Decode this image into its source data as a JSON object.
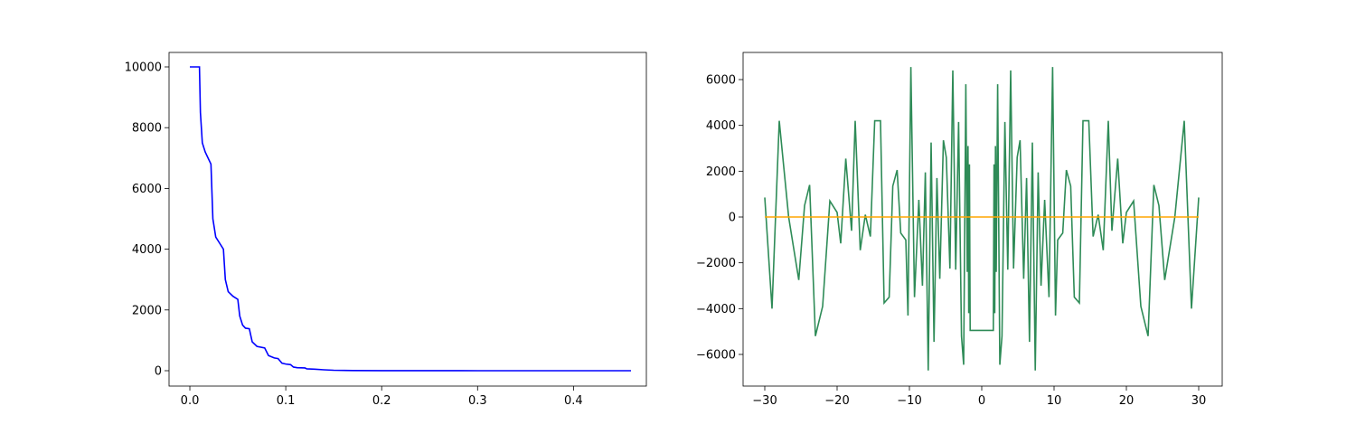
{
  "chart_data": [
    {
      "type": "line",
      "x": [
        0,
        0.01,
        0.011,
        0.013,
        0.016,
        0.022,
        0.024,
        0.027,
        0.031,
        0.035,
        0.037,
        0.04,
        0.045,
        0.05,
        0.052,
        0.055,
        0.058,
        0.062,
        0.065,
        0.07,
        0.078,
        0.082,
        0.088,
        0.092,
        0.096,
        0.1,
        0.105,
        0.108,
        0.112,
        0.12,
        0.122,
        0.13,
        0.14,
        0.15,
        0.17,
        0.2,
        0.3,
        0.46
      ],
      "values": [
        10000,
        10000,
        8500,
        7500,
        7200,
        6800,
        5000,
        4400,
        4200,
        4000,
        3000,
        2600,
        2450,
        2350,
        1800,
        1500,
        1400,
        1380,
        950,
        800,
        750,
        500,
        420,
        400,
        250,
        220,
        200,
        120,
        100,
        90,
        60,
        50,
        30,
        15,
        5,
        2,
        0,
        0
      ],
      "color": "#0000ff",
      "xlim": [
        -0.0217,
        0.476
      ],
      "ylim": [
        -506,
        10476
      ],
      "xticks": [
        {
          "value": 0,
          "label": "0.0"
        },
        0.1,
        0.2,
        0.3,
        0.4
      ],
      "yticks": [
        0,
        2000,
        4000,
        6000,
        8000,
        10000
      ]
    },
    {
      "type": "line",
      "series": [
        {
          "color": "#2e8b57",
          "x": [
            -30,
            -29,
            -28,
            -26.7,
            -25.3,
            -24.5,
            -23.8,
            -23,
            -22,
            -21,
            -20,
            -19.5,
            -18.8,
            -18,
            -17.5,
            -16.8,
            -16.1,
            -15.4,
            -14.8,
            -14,
            -13.5,
            -12.8,
            -12.3,
            -11.7,
            -11.2,
            -10.5,
            -10.2,
            -9.8,
            -9.3,
            -8.7,
            -8.2,
            -7.8,
            -7.4,
            -7,
            -6.6,
            -6.2,
            -5.8,
            -5.3,
            -4.9,
            -4.4,
            -4,
            -3.6,
            -3.2,
            -2.8,
            -2.5,
            -2.2,
            -2,
            -1.9,
            -1.8,
            -1.7,
            -1.6,
            0,
            1.6,
            1.7,
            1.8,
            1.9,
            2,
            2.2,
            2.5,
            2.8,
            3.2,
            3.6,
            4,
            4.4,
            4.9,
            5.3,
            5.8,
            6.2,
            6.6,
            7,
            7.4,
            7.8,
            8.2,
            8.7,
            9.3,
            9.8,
            10.2,
            10.5,
            11.2,
            11.7,
            12.3,
            12.8,
            13.5,
            14,
            14.8,
            15.4,
            16.1,
            16.8,
            17.5,
            18,
            18.8,
            19.5,
            20,
            21,
            22,
            23,
            23.8,
            24.5,
            25.3,
            26.7,
            28,
            29,
            30
          ],
          "values": [
            850,
            -4000,
            4200,
            0,
            -2750,
            500,
            1400,
            -5200,
            -3900,
            700,
            200,
            -1150,
            2550,
            -600,
            4200,
            -1450,
            100,
            -850,
            4200,
            4200,
            -3750,
            -3500,
            1350,
            2050,
            -700,
            -1000,
            -4300,
            6550,
            -3500,
            750,
            -3000,
            1950,
            -6700,
            3250,
            -5450,
            1700,
            -2700,
            3350,
            2600,
            -2250,
            6400,
            -2300,
            4150,
            -5200,
            -6450,
            5800,
            -2400,
            3100,
            -4200,
            2300,
            -4950,
            -4950,
            -4950,
            2300,
            -4200,
            3100,
            -2400,
            5800,
            -6450,
            -5200,
            4150,
            -2300,
            6400,
            -2250,
            2600,
            3350,
            -2700,
            1700,
            -5450,
            3250,
            -6700,
            1950,
            -3000,
            750,
            -3500,
            6550,
            -4300,
            -1000,
            -700,
            2050,
            1350,
            -3500,
            -3750,
            4200,
            4200,
            -850,
            100,
            -1450,
            4200,
            -600,
            2550,
            -1150,
            200,
            700,
            -3900,
            -5200,
            1400,
            500,
            -2750,
            0,
            4200,
            -4000,
            850
          ]
        },
        {
          "color": "#ffa500",
          "x": [
            -30,
            30
          ],
          "values": [
            0,
            0
          ]
        }
      ],
      "xlim": [
        -33,
        33.25
      ],
      "ylim": [
        -7382,
        7185
      ],
      "xticks": [
        {
          "value": -30,
          "label": "−30"
        },
        {
          "value": -20,
          "label": "−20"
        },
        {
          "value": -10,
          "label": "−10"
        },
        0,
        10,
        20,
        30
      ],
      "yticks": [
        {
          "value": -6000,
          "label": "−6000"
        },
        {
          "value": -4000,
          "label": "−4000"
        },
        {
          "value": -2000,
          "label": "−2000"
        },
        0,
        2000,
        4000,
        6000
      ]
    }
  ]
}
